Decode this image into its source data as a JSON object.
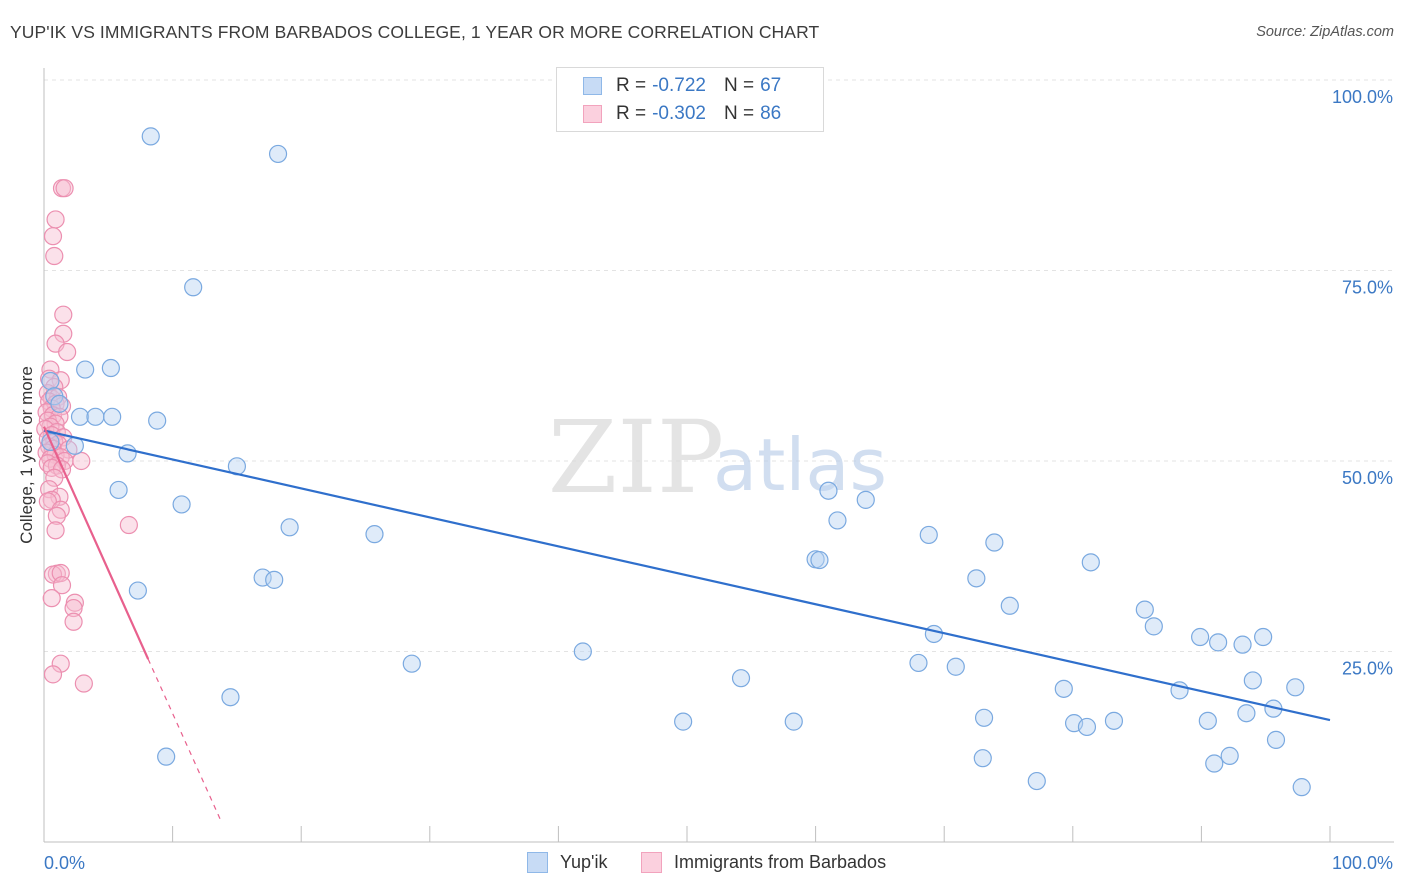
{
  "chart_data": {
    "type": "scatter",
    "title": "YUP'IK VS IMMIGRANTS FROM BARBADOS COLLEGE, 1 YEAR OR MORE CORRELATION CHART",
    "source": "Source: ZipAtlas.com",
    "xlabel": "",
    "ylabel": "College, 1 year or more",
    "xlim": [
      0,
      100
    ],
    "ylim": [
      0,
      100
    ],
    "x_tick_labels": [
      "0.0%",
      "100.0%"
    ],
    "y_tick_labels": [
      "100.0%",
      "75.0%",
      "50.0%",
      "25.0%"
    ],
    "y_tick_values": [
      100,
      75,
      50,
      25
    ],
    "watermark": {
      "zip": "ZIP",
      "atlas": "atlas"
    },
    "legend_stats": [
      {
        "r_label": "R =",
        "r_value": "-0.722",
        "n_label": "N =",
        "n_value": "67"
      },
      {
        "r_label": "R =",
        "r_value": "-0.302",
        "n_label": "N =",
        "n_value": "86"
      }
    ],
    "series": [
      {
        "name": "Yup'ik",
        "color": "#8fb8e8",
        "line_color": "#2f6fcc",
        "trend": {
          "x": [
            0,
            100
          ],
          "y": [
            54,
            16
          ]
        },
        "points": [
          [
            8.3,
            92.6
          ],
          [
            18.2,
            90.3
          ],
          [
            11.6,
            72.8
          ],
          [
            3.2,
            62.0
          ],
          [
            5.2,
            62.2
          ],
          [
            0.5,
            60.5
          ],
          [
            0.8,
            58.5
          ],
          [
            1.2,
            57.5
          ],
          [
            2.8,
            55.8
          ],
          [
            4.0,
            55.8
          ],
          [
            5.3,
            55.8
          ],
          [
            8.8,
            55.3
          ],
          [
            0.5,
            52.5
          ],
          [
            2.4,
            52.0
          ],
          [
            6.5,
            51.0
          ],
          [
            15.0,
            49.3
          ],
          [
            5.8,
            46.2
          ],
          [
            10.7,
            44.3
          ],
          [
            19.1,
            41.3
          ],
          [
            25.7,
            40.4
          ],
          [
            17.0,
            34.7
          ],
          [
            17.9,
            34.4
          ],
          [
            7.3,
            33.0
          ],
          [
            28.6,
            23.4
          ],
          [
            41.9,
            25.0
          ],
          [
            14.5,
            19.0
          ],
          [
            9.5,
            11.2
          ],
          [
            54.2,
            21.5
          ],
          [
            49.7,
            15.8
          ],
          [
            58.3,
            15.8
          ],
          [
            60.0,
            37.1
          ],
          [
            60.3,
            37.0
          ],
          [
            61.0,
            46.1
          ],
          [
            61.7,
            42.2
          ],
          [
            63.9,
            44.9
          ],
          [
            68.0,
            23.5
          ],
          [
            68.8,
            40.3
          ],
          [
            69.2,
            27.3
          ],
          [
            70.9,
            23.0
          ],
          [
            72.5,
            34.6
          ],
          [
            73.1,
            16.3
          ],
          [
            73.0,
            11.0
          ],
          [
            73.9,
            39.3
          ],
          [
            75.1,
            31.0
          ],
          [
            77.2,
            8.0
          ],
          [
            79.3,
            20.1
          ],
          [
            80.1,
            15.6
          ],
          [
            81.1,
            15.1
          ],
          [
            81.4,
            36.7
          ],
          [
            83.2,
            15.9
          ],
          [
            85.6,
            30.5
          ],
          [
            86.3,
            28.3
          ],
          [
            88.3,
            19.9
          ],
          [
            89.9,
            26.9
          ],
          [
            90.5,
            15.9
          ],
          [
            91.0,
            10.3
          ],
          [
            91.3,
            26.2
          ],
          [
            92.2,
            11.3
          ],
          [
            93.2,
            25.9
          ],
          [
            93.5,
            16.9
          ],
          [
            94.0,
            21.2
          ],
          [
            94.8,
            26.9
          ],
          [
            95.6,
            17.5
          ],
          [
            95.8,
            13.4
          ],
          [
            97.3,
            20.3
          ],
          [
            97.8,
            7.2
          ]
        ]
      },
      {
        "name": "Immigrants from Barbados",
        "color": "#f2a3bd",
        "line_color": "#e8608d",
        "trend": {
          "x": [
            0,
            8.1
          ],
          "y": [
            54.5,
            24.0
          ]
        },
        "trend_dash": {
          "x": [
            8.1,
            13.7
          ],
          "y": [
            24.0,
            3.0
          ]
        },
        "points": [
          [
            1.4,
            85.8
          ],
          [
            1.6,
            85.8
          ],
          [
            0.9,
            81.7
          ],
          [
            0.7,
            79.5
          ],
          [
            0.8,
            76.9
          ],
          [
            1.5,
            69.2
          ],
          [
            1.5,
            66.7
          ],
          [
            0.9,
            65.4
          ],
          [
            1.8,
            64.3
          ],
          [
            0.5,
            62.0
          ],
          [
            0.4,
            60.8
          ],
          [
            1.3,
            60.6
          ],
          [
            0.8,
            59.7
          ],
          [
            0.3,
            58.9
          ],
          [
            0.6,
            58.2
          ],
          [
            1.1,
            58.4
          ],
          [
            0.4,
            57.8
          ],
          [
            0.9,
            57.5
          ],
          [
            1.4,
            57.2
          ],
          [
            0.6,
            56.9
          ],
          [
            0.2,
            56.4
          ],
          [
            0.7,
            56.0
          ],
          [
            1.2,
            55.8
          ],
          [
            0.3,
            55.3
          ],
          [
            0.9,
            54.9
          ],
          [
            0.5,
            54.5
          ],
          [
            0.1,
            54.2
          ],
          [
            1.0,
            53.8
          ],
          [
            0.6,
            53.4
          ],
          [
            1.5,
            53.1
          ],
          [
            0.3,
            52.9
          ],
          [
            0.8,
            52.5
          ],
          [
            1.1,
            52.2
          ],
          [
            0.4,
            51.9
          ],
          [
            0.7,
            51.6
          ],
          [
            1.9,
            51.5
          ],
          [
            0.2,
            51.1
          ],
          [
            0.9,
            50.8
          ],
          [
            1.3,
            50.5
          ],
          [
            0.5,
            50.3
          ],
          [
            1.6,
            50.0
          ],
          [
            2.9,
            50.0
          ],
          [
            0.3,
            49.7
          ],
          [
            1.0,
            49.4
          ],
          [
            0.6,
            49.1
          ],
          [
            1.4,
            48.9
          ],
          [
            0.8,
            47.8
          ],
          [
            0.4,
            46.3
          ],
          [
            1.2,
            45.3
          ],
          [
            0.6,
            44.9
          ],
          [
            0.3,
            44.7
          ],
          [
            1.3,
            43.6
          ],
          [
            1.0,
            42.8
          ],
          [
            6.6,
            41.6
          ],
          [
            0.9,
            40.9
          ],
          [
            1.0,
            35.2
          ],
          [
            0.7,
            35.1
          ],
          [
            1.3,
            35.3
          ],
          [
            1.4,
            33.7
          ],
          [
            0.6,
            32.0
          ],
          [
            2.4,
            31.4
          ],
          [
            2.3,
            30.7
          ],
          [
            2.3,
            28.9
          ],
          [
            1.3,
            23.4
          ],
          [
            0.7,
            22.0
          ],
          [
            3.1,
            20.8
          ]
        ]
      }
    ]
  },
  "legend_bottom": {
    "yupik_label": "Yup'ik",
    "barbados_label": "Immigrants from Barbados"
  }
}
